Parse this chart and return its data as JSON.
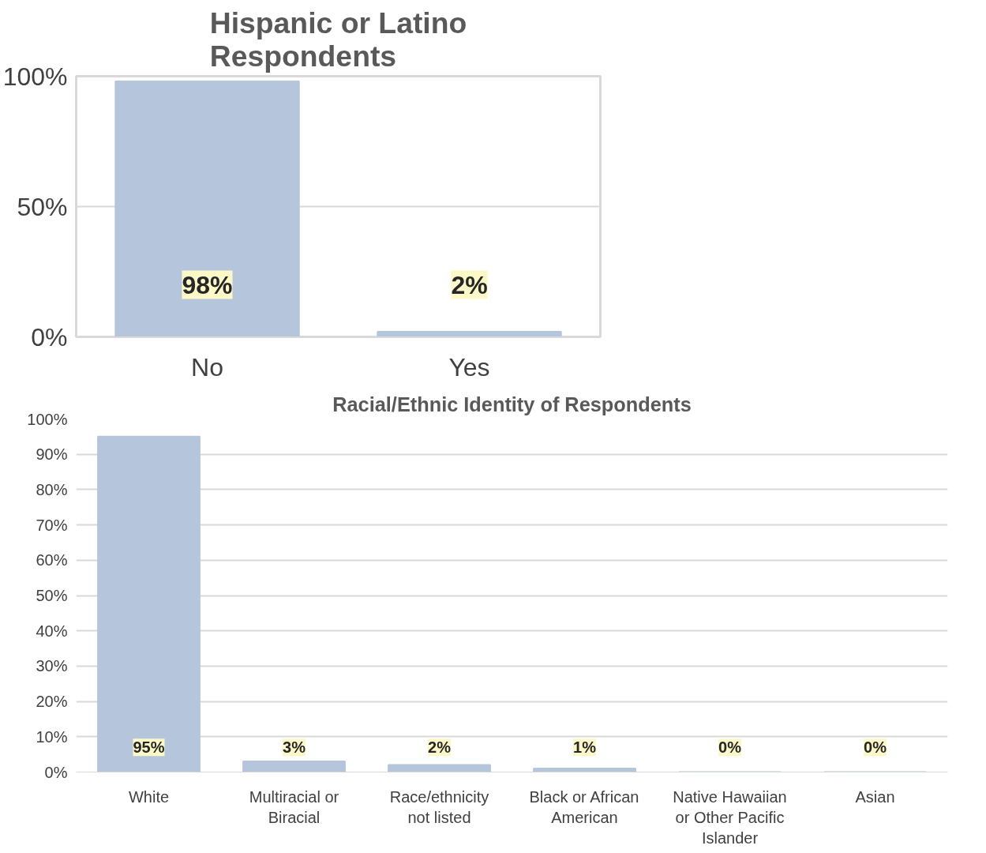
{
  "chart_data": [
    {
      "type": "bar",
      "title": "Hispanic or Latino Respondents",
      "categories": [
        "No",
        "Yes"
      ],
      "values": [
        98,
        2
      ],
      "color": "#b4c5dc",
      "ylim": [
        0,
        100
      ],
      "yticks": [
        {
          "value": 0,
          "label": "0%"
        },
        {
          "value": 50,
          "label": "50%"
        },
        {
          "value": 100,
          "label": "100%"
        }
      ],
      "grid": "y",
      "value_labels": [
        "98%",
        "2%"
      ]
    },
    {
      "type": "bar",
      "title": "Racial/Ethnic Identity of Respondents",
      "categories": [
        "White",
        "Multiracial or Biracial",
        "Race/ethnicity not listed",
        "Black or African American",
        "Native Hawaiian or Other Pacific Islander",
        "Asian"
      ],
      "values": [
        95,
        3,
        2,
        1,
        0,
        0
      ],
      "color": "#b4c5dc",
      "ylim": [
        0,
        100
      ],
      "yticks": [
        {
          "value": 0,
          "label": "0%"
        },
        {
          "value": 10,
          "label": "10%"
        },
        {
          "value": 20,
          "label": "20%"
        },
        {
          "value": 30,
          "label": "30%"
        },
        {
          "value": 40,
          "label": "40%"
        },
        {
          "value": 50,
          "label": "50%"
        },
        {
          "value": 60,
          "label": "60%"
        },
        {
          "value": 70,
          "label": "70%"
        },
        {
          "value": 80,
          "label": "80%"
        },
        {
          "value": 90,
          "label": "90%"
        },
        {
          "value": 100,
          "label": "100%"
        }
      ],
      "grid": "y",
      "value_labels": [
        "95%",
        "3%",
        "2%",
        "1%",
        "0%",
        "0%"
      ]
    }
  ]
}
